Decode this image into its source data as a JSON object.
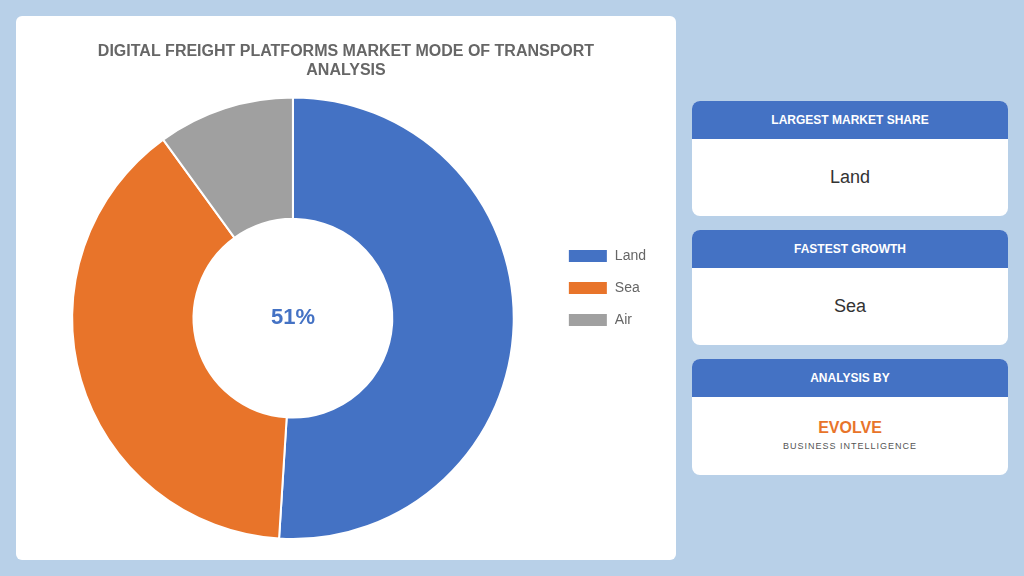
{
  "chart_data": {
    "type": "donut",
    "title": "DIGITAL FREIGHT PLATFORMS MARKET MODE OF TRANSPORT\nANALYSIS",
    "categories": [
      "Land",
      "Sea",
      "Air"
    ],
    "values": [
      51,
      39,
      10
    ],
    "colors": [
      "#4472C4",
      "#E8742A",
      "#A0A0A0"
    ],
    "legend": "right",
    "center_text": "51%",
    "info_boxes": [
      {
        "header": "LARGEST MARKET SHARE",
        "value": "Land"
      },
      {
        "header": "FASTEST GROWTH",
        "value": "Sea"
      },
      {
        "header": "ANALYSIS BY",
        "lines": [
          "EVOLVE",
          "BUSINESS INTELLIGENCE"
        ]
      }
    ]
  }
}
